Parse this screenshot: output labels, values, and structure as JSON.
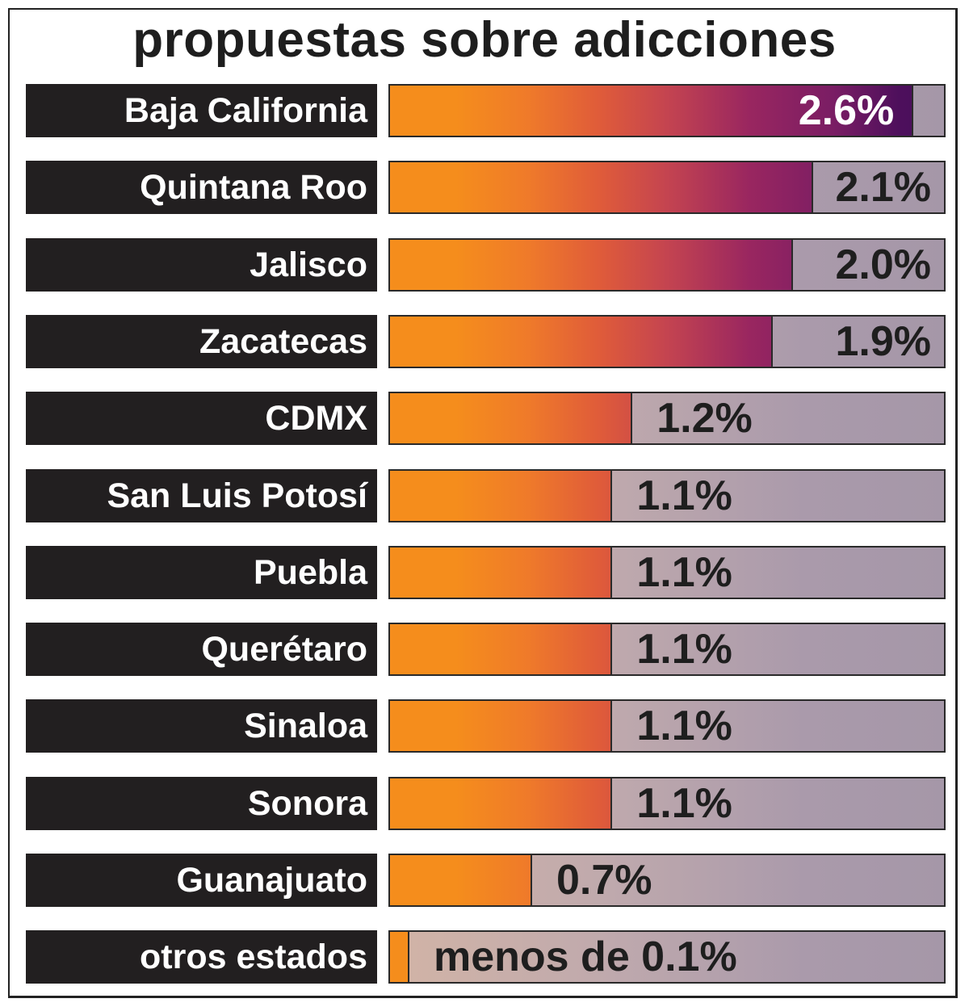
{
  "chart_data": {
    "type": "bar",
    "orientation": "horizontal",
    "title": "propuestas sobre adicciones",
    "categories": [
      "Baja California",
      "Quintana Roo",
      "Jalisco",
      "Zacatecas",
      "CDMX",
      "San Luis Potosí",
      "Puebla",
      "Querétaro",
      "Sinaloa",
      "Sonora",
      "Guanajuato",
      "otros estados"
    ],
    "values": [
      2.6,
      2.1,
      2.0,
      1.9,
      1.2,
      1.1,
      1.1,
      1.1,
      1.1,
      1.1,
      0.7,
      0.05
    ],
    "labels": [
      "2.6%",
      "2.1%",
      "2.0%",
      "1.9%",
      "1.2%",
      "1.1%",
      "1.1%",
      "1.1%",
      "1.1%",
      "1.1%",
      "0.7%",
      "menos de 0.1%"
    ],
    "xlim": [
      0,
      2.76
    ],
    "unit": "%",
    "grid": false,
    "colors": {
      "gradient_start": "#f58d1c",
      "gradient_end": "#4a0e5a",
      "track": "#aa9aab",
      "label_bg": "#221f20"
    }
  }
}
